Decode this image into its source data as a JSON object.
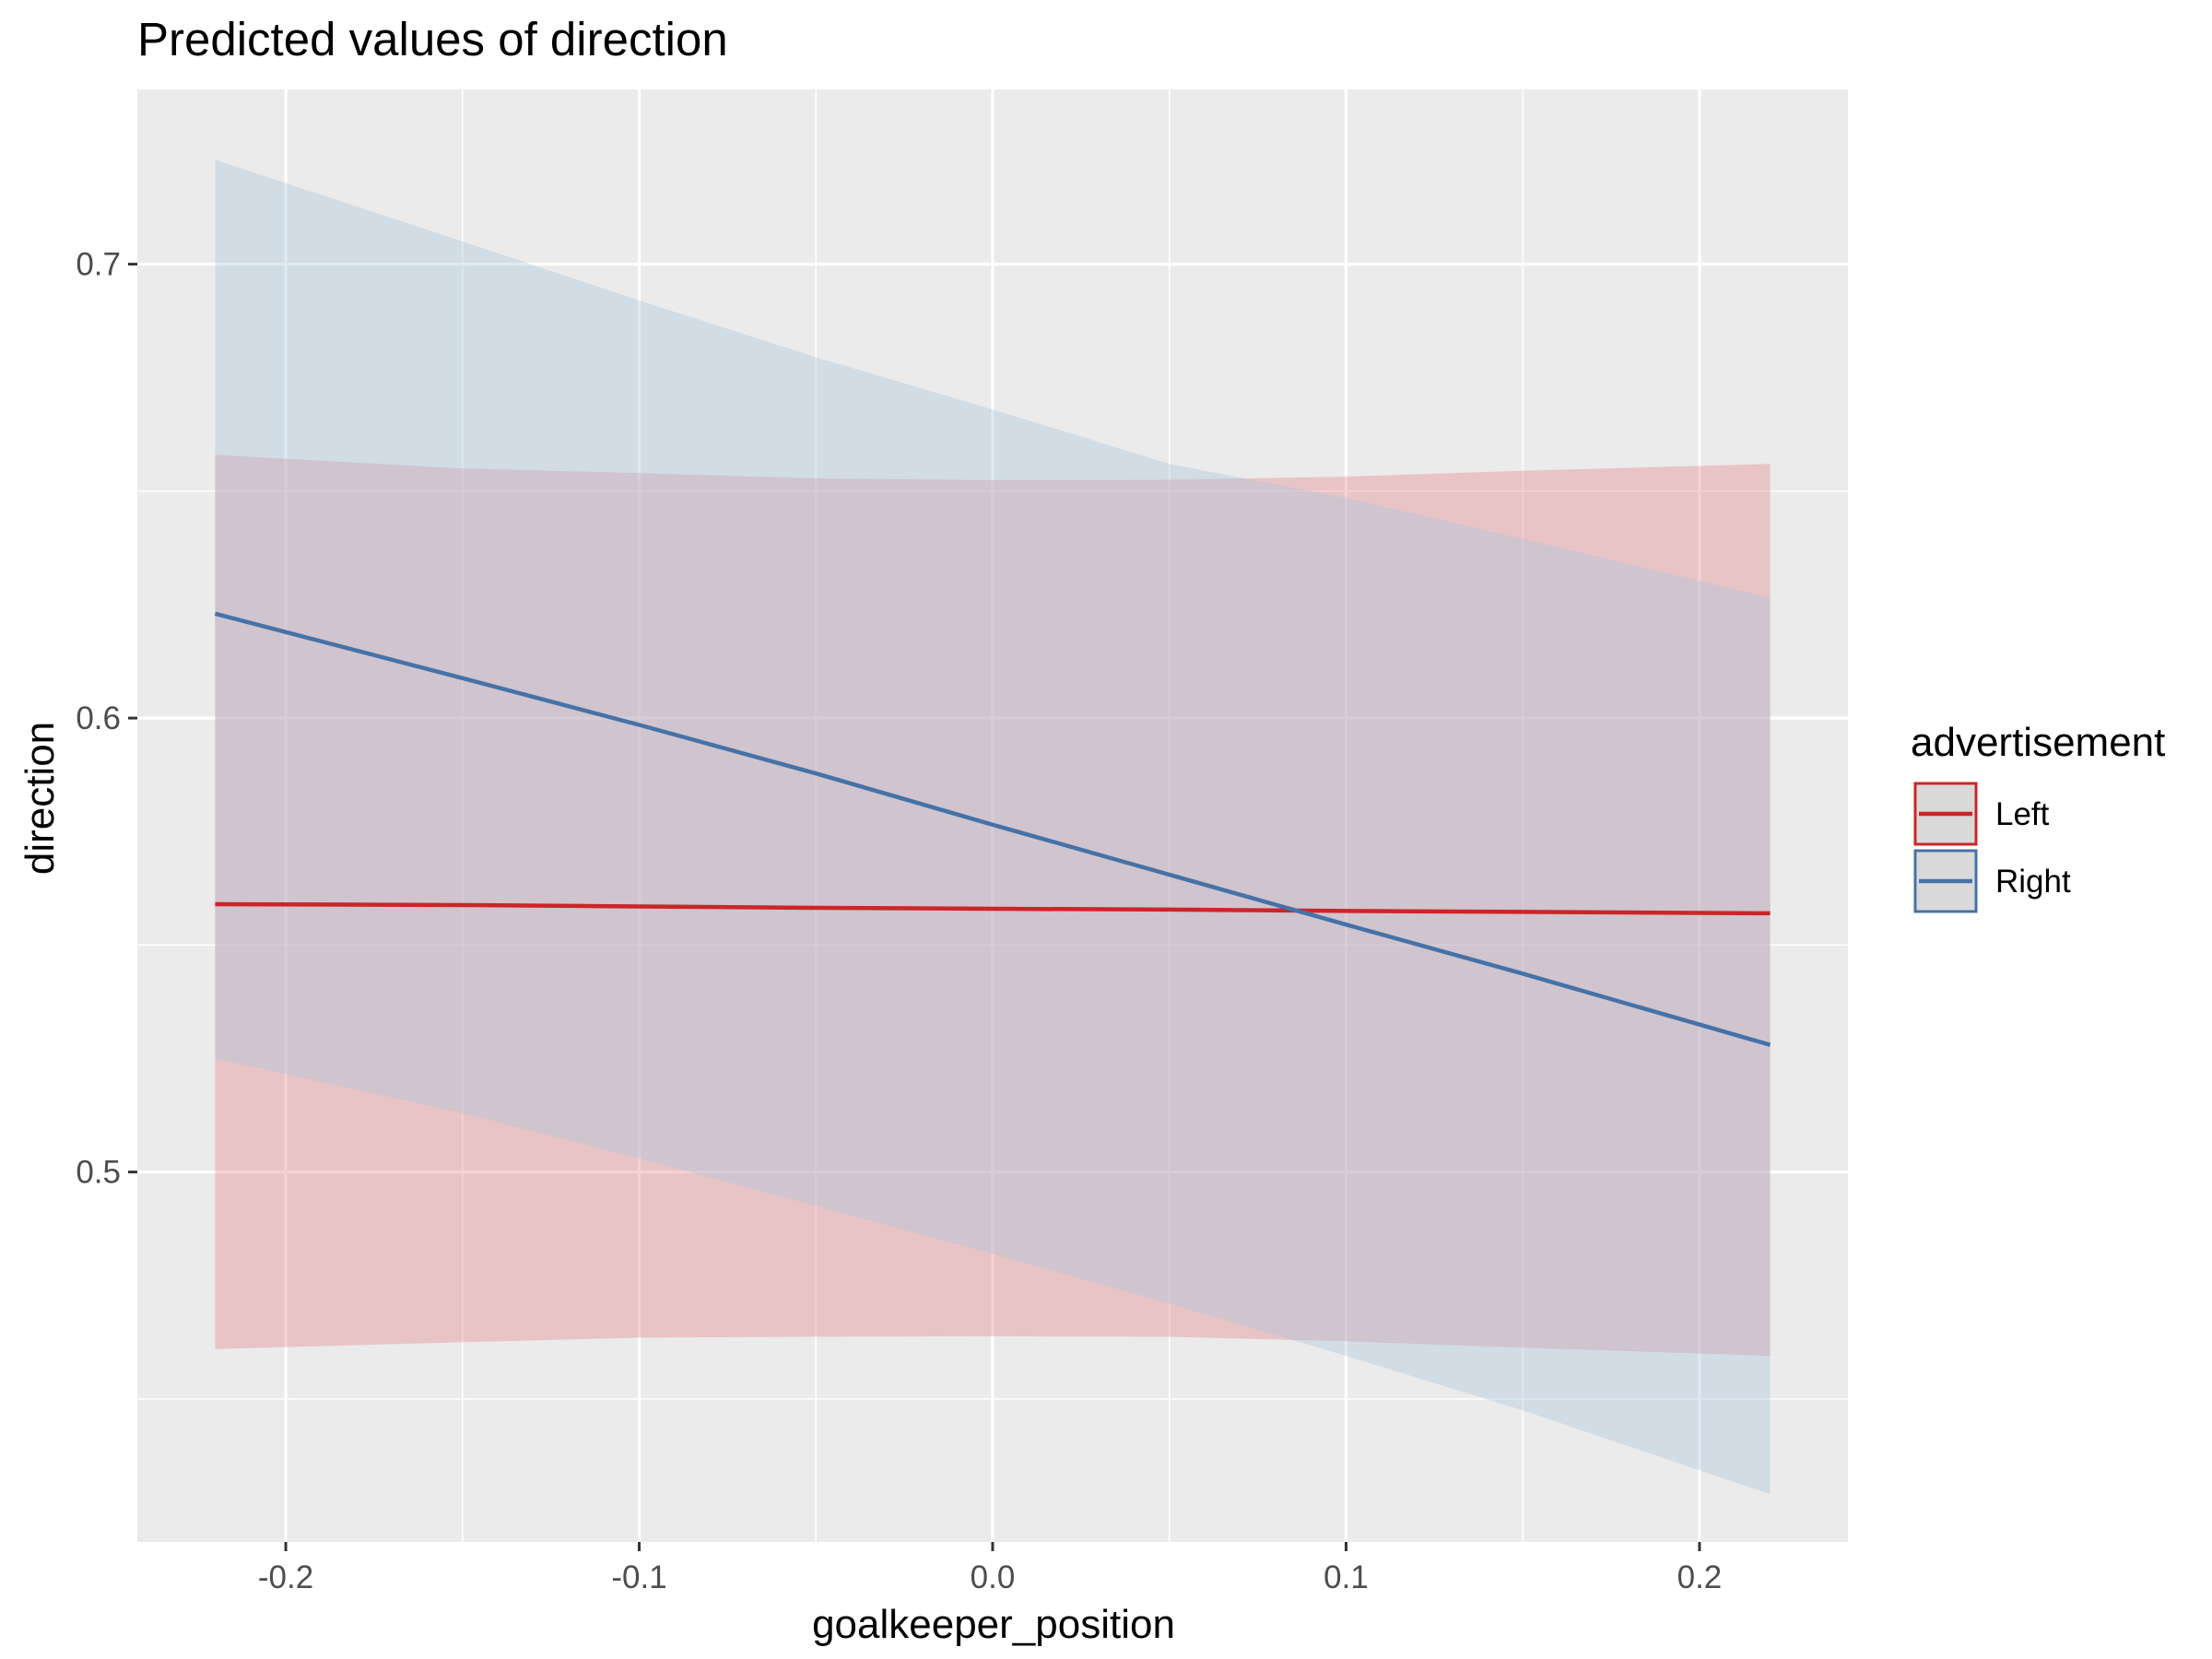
{
  "chart_data": {
    "type": "line",
    "title": "Predicted values of direction",
    "xlabel": "goalkeeper_position",
    "ylabel": "direction",
    "xlim": [
      -0.242,
      0.242
    ],
    "ylim": [
      0.4185,
      0.7385
    ],
    "x_ticks": [
      -0.2,
      -0.1,
      0.0,
      0.1,
      0.2
    ],
    "x_tick_labels": [
      "-0.2",
      "-0.1",
      "0.0",
      "0.1",
      "0.2"
    ],
    "y_ticks": [
      0.5,
      0.6,
      0.7
    ],
    "y_tick_labels": [
      "0.5",
      "0.6",
      "0.7"
    ],
    "grid": true,
    "legend": {
      "title": "advertisement",
      "position": "right"
    },
    "series": [
      {
        "name": "Left",
        "color": "#cc2529",
        "fill": "#e4868c",
        "x": [
          -0.22,
          -0.15,
          -0.1,
          -0.05,
          0.0,
          0.05,
          0.1,
          0.15,
          0.22
        ],
        "y": [
          0.559,
          0.5588,
          0.5585,
          0.5582,
          0.558,
          0.5578,
          0.5575,
          0.5573,
          0.557
        ],
        "lower": [
          0.461,
          0.4625,
          0.4635,
          0.4637,
          0.4638,
          0.4637,
          0.4627,
          0.4613,
          0.4595
        ],
        "upper": [
          0.658,
          0.655,
          0.654,
          0.6528,
          0.6524,
          0.6525,
          0.6532,
          0.6545,
          0.656
        ]
      },
      {
        "name": "Right",
        "color": "#4572a7",
        "fill": "#a7c4dc",
        "x": [
          -0.22,
          -0.15,
          -0.1,
          -0.05,
          0.0,
          0.05,
          0.1,
          0.15,
          0.22
        ],
        "y": [
          0.623,
          0.6088,
          0.5985,
          0.5878,
          0.5765,
          0.5655,
          0.5545,
          0.5437,
          0.528
        ],
        "lower": [
          0.525,
          0.513,
          0.503,
          0.4925,
          0.482,
          0.471,
          0.4595,
          0.4475,
          0.429
        ],
        "upper": [
          0.723,
          0.705,
          0.692,
          0.6795,
          0.668,
          0.656,
          0.6485,
          0.6395,
          0.6265
        ]
      }
    ]
  }
}
